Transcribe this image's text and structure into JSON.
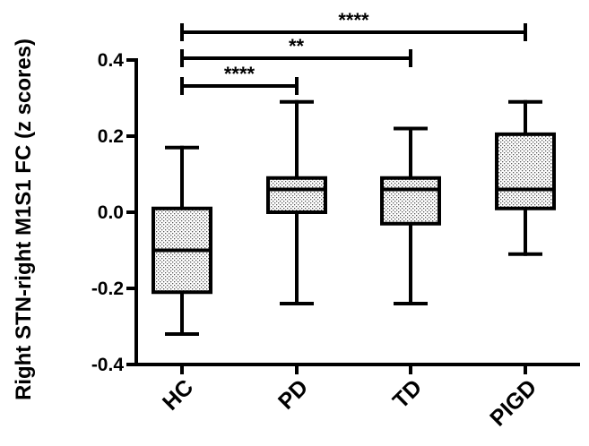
{
  "chart_data": {
    "type": "boxplot",
    "ylabel": "Right STN-right M1S1 FC (z scores)",
    "ylim": [
      -0.4,
      0.4
    ],
    "yticks": [
      -0.4,
      -0.2,
      0.0,
      0.2,
      0.4
    ],
    "ytick_labels": [
      "-0.4",
      "-0.2",
      "0.0",
      "0.2",
      "0.4"
    ],
    "categories": [
      "HC",
      "PD",
      "TD",
      "PIGD"
    ],
    "boxes": [
      {
        "category": "HC",
        "min": -0.32,
        "q1": -0.21,
        "median": -0.1,
        "q3": 0.01,
        "max": 0.17
      },
      {
        "category": "PD",
        "min": -0.24,
        "q1": 0.0,
        "median": 0.06,
        "q3": 0.09,
        "max": 0.29
      },
      {
        "category": "TD",
        "min": -0.24,
        "q1": -0.03,
        "median": 0.06,
        "q3": 0.09,
        "max": 0.22
      },
      {
        "category": "PIGD",
        "min": -0.11,
        "q1": 0.01,
        "median": 0.06,
        "q3": 0.205,
        "max": 0.29
      }
    ],
    "significance": [
      {
        "from": "HC",
        "to": "PIGD",
        "label": "****"
      },
      {
        "from": "HC",
        "to": "TD",
        "label": "**"
      },
      {
        "from": "HC",
        "to": "PD",
        "label": "****"
      }
    ],
    "box_fill": "dotted-gray",
    "grid": false
  }
}
